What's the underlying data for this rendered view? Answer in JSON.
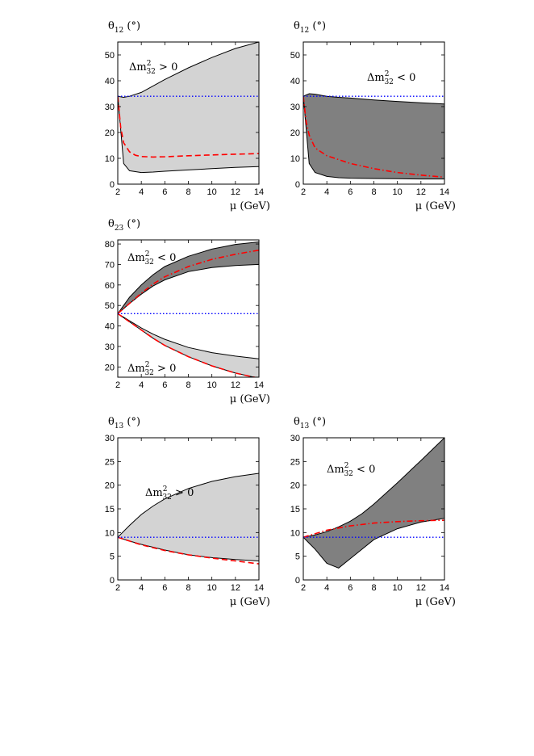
{
  "chart_data": [
    {
      "type": "area",
      "panel": "theta12-positive",
      "ylabel": {
        "symbol": "θ",
        "sub": "12",
        "unit": " (°)"
      },
      "xlabel": {
        "symbol": "μ",
        "unit": " (GeV)"
      },
      "annotation": {
        "pre": "Δm",
        "sup": "2",
        "sub": "32",
        "post": " > 0"
      },
      "xlim": [
        2,
        14
      ],
      "ylim": [
        0,
        55
      ],
      "xticks": [
        2,
        4,
        6,
        8,
        10,
        12,
        14
      ],
      "yticks": [
        0,
        10,
        20,
        30,
        40,
        50
      ],
      "band_color": "#d3d3d3",
      "band": {
        "x": [
          2,
          2.5,
          3,
          4,
          5,
          6,
          8,
          10,
          12,
          14
        ],
        "upper": [
          34,
          33.6,
          34,
          35.5,
          38,
          40.5,
          45,
          49,
          52.5,
          55
        ],
        "lower": [
          34,
          8,
          5.2,
          4.5,
          4.7,
          5,
          5.5,
          6,
          6.5,
          6.8
        ]
      },
      "series": [
        {
          "style": "dashed",
          "color": "#ff0000",
          "x": [
            2,
            2.25,
            2.5,
            3,
            3.5,
            4,
            5,
            6,
            8,
            10,
            12,
            14
          ],
          "y": [
            34,
            22,
            16,
            12.5,
            11.2,
            10.7,
            10.5,
            10.6,
            11,
            11.3,
            11.6,
            11.8
          ]
        },
        {
          "style": "dotted",
          "color": "#0000ff",
          "x": [
            2,
            14
          ],
          "y": [
            34,
            34
          ]
        }
      ]
    },
    {
      "type": "area",
      "panel": "theta12-negative",
      "ylabel": {
        "symbol": "θ",
        "sub": "12",
        "unit": " (°)"
      },
      "xlabel": {
        "symbol": "μ",
        "unit": " (GeV)"
      },
      "annotation": {
        "pre": "Δm",
        "sup": "2",
        "sub": "32",
        "post": " < 0"
      },
      "xlim": [
        2,
        14
      ],
      "ylim": [
        0,
        55
      ],
      "xticks": [
        2,
        4,
        6,
        8,
        10,
        12,
        14
      ],
      "yticks": [
        0,
        10,
        20,
        30,
        40,
        50
      ],
      "band_color": "#808080",
      "band": {
        "x": [
          2,
          2.5,
          3,
          4,
          5,
          6,
          8,
          10,
          12,
          14
        ],
        "upper": [
          34,
          35,
          34.8,
          34,
          33.6,
          33.3,
          32.6,
          32,
          31.5,
          31
        ],
        "lower": [
          34,
          8,
          4.5,
          3,
          2.5,
          2.3,
          2.2,
          2.1,
          2,
          2
        ]
      },
      "series": [
        {
          "style": "dashdot",
          "color": "#ff0000",
          "x": [
            2,
            2.25,
            2.5,
            3,
            4,
            5,
            6,
            8,
            10,
            12,
            14
          ],
          "y": [
            34,
            24,
            19,
            14,
            11,
            9.5,
            8,
            6,
            4.5,
            3.5,
            2.7
          ]
        },
        {
          "style": "dotted",
          "color": "#0000ff",
          "x": [
            2,
            14
          ],
          "y": [
            34,
            34
          ]
        }
      ]
    },
    {
      "type": "area",
      "panel": "theta23",
      "ylabel": {
        "symbol": "θ",
        "sub": "23",
        "unit": " (°)"
      },
      "xlabel": {
        "symbol": "μ",
        "unit": " (GeV)"
      },
      "annotations": [
        {
          "pre": "Δm",
          "sup": "2",
          "sub": "32",
          "post": " < 0",
          "at": "upper-left"
        },
        {
          "pre": "Δm",
          "sup": "2",
          "sub": "32",
          "post": " > 0",
          "at": "lower-left"
        }
      ],
      "xlim": [
        2,
        14
      ],
      "ylim": [
        15,
        82
      ],
      "xticks": [
        2,
        4,
        6,
        8,
        10,
        12,
        14
      ],
      "yticks": [
        20,
        30,
        40,
        50,
        60,
        70,
        80
      ],
      "bands": [
        {
          "color": "#808080",
          "x": [
            2,
            3,
            4,
            5,
            6,
            8,
            10,
            12,
            14
          ],
          "upper": [
            46,
            54,
            60,
            65,
            69,
            74,
            77.5,
            79.8,
            81
          ],
          "lower": [
            46,
            51,
            55.5,
            59.5,
            62.5,
            66.5,
            68.5,
            69.5,
            70
          ]
        },
        {
          "color": "#d3d3d3",
          "x": [
            2,
            3,
            4,
            5,
            6,
            8,
            10,
            12,
            14
          ],
          "upper": [
            46,
            42.5,
            39,
            36,
            33.5,
            29.5,
            27,
            25.3,
            24
          ],
          "lower": [
            46,
            42,
            38,
            34,
            30.5,
            25,
            20.5,
            17,
            14.5
          ]
        }
      ],
      "series": [
        {
          "style": "dashdot",
          "color": "#ff0000",
          "x": [
            2,
            3,
            4,
            5,
            6,
            8,
            10,
            12,
            14
          ],
          "y": [
            46,
            51,
            56,
            60.5,
            64,
            69,
            72.5,
            75,
            77
          ]
        },
        {
          "style": "dashed",
          "color": "#ff0000",
          "x": [
            2,
            3,
            4,
            5,
            6,
            8,
            10,
            12,
            14
          ],
          "y": [
            46,
            42,
            38,
            34,
            30.5,
            25,
            20.5,
            17,
            14.5
          ]
        },
        {
          "style": "dotted",
          "color": "#0000ff",
          "x": [
            2,
            14
          ],
          "y": [
            46,
            46
          ]
        }
      ]
    },
    {
      "type": "area",
      "panel": "theta13-positive",
      "ylabel": {
        "symbol": "θ",
        "sub": "13",
        "unit": " (°)"
      },
      "xlabel": {
        "symbol": "μ",
        "unit": " (GeV)"
      },
      "annotation": {
        "pre": "Δm",
        "sup": "2",
        "sub": "32",
        "post": " > 0"
      },
      "xlim": [
        2,
        14
      ],
      "ylim": [
        0,
        30
      ],
      "xticks": [
        2,
        4,
        6,
        8,
        10,
        12,
        14
      ],
      "yticks": [
        0,
        5,
        10,
        15,
        20,
        25,
        30
      ],
      "band_color": "#d3d3d3",
      "band": {
        "x": [
          2,
          3,
          4,
          5,
          6,
          8,
          10,
          12,
          14
        ],
        "upper": [
          9,
          11.5,
          13.8,
          15.6,
          17.1,
          19.3,
          20.8,
          21.8,
          22.5
        ],
        "lower": [
          9,
          8.2,
          7.5,
          6.9,
          6.3,
          5.3,
          4.7,
          4.3,
          4
        ]
      },
      "series": [
        {
          "style": "dashed",
          "color": "#ff0000",
          "x": [
            2,
            3,
            4,
            5,
            6,
            8,
            10,
            12,
            14
          ],
          "y": [
            9,
            8.2,
            7.4,
            6.8,
            6.2,
            5.3,
            4.6,
            4,
            3.4
          ]
        },
        {
          "style": "dotted",
          "color": "#0000ff",
          "x": [
            2,
            14
          ],
          "y": [
            9,
            9
          ]
        }
      ]
    },
    {
      "type": "area",
      "panel": "theta13-negative",
      "ylabel": {
        "symbol": "θ",
        "sub": "13",
        "unit": " (°)"
      },
      "xlabel": {
        "symbol": "μ",
        "unit": " (GeV)"
      },
      "annotation": {
        "pre": "Δm",
        "sup": "2",
        "sub": "32",
        "post": " < 0"
      },
      "xlim": [
        2,
        14
      ],
      "ylim": [
        0,
        30
      ],
      "xticks": [
        2,
        4,
        6,
        8,
        10,
        12,
        14
      ],
      "yticks": [
        0,
        5,
        10,
        15,
        20,
        25,
        30
      ],
      "band_color": "#808080",
      "band": {
        "x": [
          2,
          3,
          4,
          5,
          6,
          7,
          8,
          10,
          12,
          14
        ],
        "upper": [
          9,
          9.5,
          10.2,
          11.2,
          12.4,
          14,
          16,
          20.5,
          25.2,
          30
        ],
        "lower": [
          9,
          6.5,
          3.5,
          2.5,
          4.5,
          6.5,
          8.5,
          10.8,
          12.2,
          13
        ]
      },
      "series": [
        {
          "style": "dashdot",
          "color": "#ff0000",
          "x": [
            2,
            4,
            6,
            8,
            10,
            12,
            14
          ],
          "y": [
            9,
            10.5,
            11.4,
            12,
            12.3,
            12.5,
            12.6
          ]
        },
        {
          "style": "dotted",
          "color": "#0000ff",
          "x": [
            2,
            14
          ],
          "y": [
            9,
            9
          ]
        }
      ]
    }
  ]
}
